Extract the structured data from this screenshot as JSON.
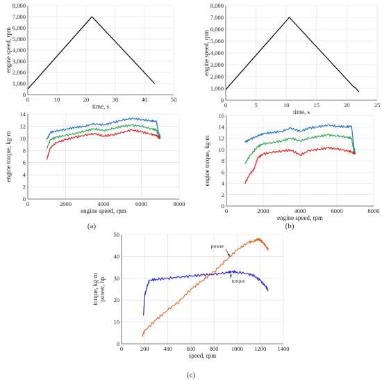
{
  "chart_data": [
    {
      "id": "a_top",
      "type": "line",
      "xlabel": "time, s",
      "ylabel": "engine speed, rpm",
      "xlim": [
        0,
        50
      ],
      "ylim": [
        0,
        8000
      ],
      "xticks": [
        0,
        10,
        20,
        30,
        40,
        50
      ],
      "xtick_labels": [
        "0",
        "10",
        "20",
        "30",
        "40",
        "50"
      ],
      "yticks": [
        0,
        1000,
        2000,
        3000,
        4000,
        5000,
        6000,
        7000,
        8000
      ],
      "ytick_labels": [
        "0",
        "1,000",
        "2,000",
        "3,000",
        "4,000",
        "5,000",
        "6,000",
        "7,000",
        "8,000"
      ],
      "grid": true,
      "series": [
        {
          "color": "#000000",
          "x": [
            0,
            22,
            43.5
          ],
          "y": [
            500,
            7000,
            1000
          ]
        }
      ]
    },
    {
      "id": "b_top",
      "type": "line",
      "xlabel": "time, s",
      "ylabel": "engine speed, rpm",
      "xlim": [
        0,
        25
      ],
      "ylim": [
        0,
        8000
      ],
      "xticks": [
        0,
        5,
        10,
        15,
        20,
        25
      ],
      "xtick_labels": [
        "0",
        "5",
        "10",
        "15",
        "20",
        "25"
      ],
      "yticks": [
        0,
        1000,
        2000,
        3000,
        4000,
        5000,
        6000,
        7000,
        8000
      ],
      "ytick_labels": [
        "0",
        "1,000",
        "2,000",
        "3,000",
        "4,000",
        "5,000",
        "6,000",
        "7,000",
        "8,000"
      ],
      "grid": true,
      "series": [
        {
          "color": "#000000",
          "x": [
            0,
            10.5,
            21,
            21.5,
            22
          ],
          "y": [
            900,
            7000,
            1200,
            1000,
            700
          ]
        }
      ]
    },
    {
      "id": "a_bottom",
      "type": "line",
      "xlabel": "engine speed, rpm",
      "ylabel": "engine torque, kg·m",
      "xlim": [
        0,
        8000
      ],
      "ylim": [
        0,
        14
      ],
      "xticks": [
        0,
        2000,
        4000,
        6000,
        8000
      ],
      "xtick_labels": [
        "0",
        "2000",
        "4000",
        "6000",
        "8000"
      ],
      "yticks": [
        0,
        2,
        4,
        6,
        8,
        10,
        12,
        14
      ],
      "ytick_labels": [
        "0",
        "2",
        "4",
        "6",
        "8",
        "10",
        "12",
        "14"
      ],
      "grid": true,
      "series": [
        {
          "color": "#1f6fc8",
          "x": [
            1000,
            1200,
            1500,
            2000,
            2500,
            3000,
            3500,
            4000,
            4500,
            5000,
            5500,
            6000,
            6500,
            6800,
            6900,
            7000
          ],
          "y": [
            9.8,
            11.0,
            11.2,
            11.5,
            11.8,
            12.0,
            12.4,
            12.2,
            12.6,
            13.0,
            13.3,
            13.1,
            12.9,
            12.8,
            11.0,
            10.2
          ]
        },
        {
          "color": "#2aa84a",
          "x": [
            1000,
            1200,
            1500,
            2000,
            2500,
            3000,
            3500,
            4000,
            4500,
            5000,
            5500,
            6000,
            6500,
            6800,
            6900,
            7000
          ],
          "y": [
            8.3,
            9.8,
            10.2,
            10.5,
            10.8,
            11.2,
            11.6,
            11.3,
            11.6,
            12.0,
            12.2,
            12.0,
            11.6,
            11.4,
            10.5,
            10.0
          ]
        },
        {
          "color": "#e02020",
          "x": [
            1000,
            1200,
            1500,
            2000,
            2500,
            3000,
            3500,
            4000,
            4500,
            5000,
            5500,
            6000,
            6500,
            6800,
            6900,
            7000
          ],
          "y": [
            6.5,
            8.5,
            9.3,
            9.8,
            10.2,
            10.5,
            10.8,
            10.4,
            10.6,
            11.0,
            11.4,
            11.1,
            10.7,
            10.5,
            10.2,
            10.0
          ]
        }
      ]
    },
    {
      "id": "b_bottom",
      "type": "line",
      "xlabel": "engine speed, rpm",
      "ylabel": "engine torque, kg·m",
      "xlim": [
        0,
        8000
      ],
      "ylim": [
        0,
        16
      ],
      "xticks": [
        0,
        2000,
        4000,
        6000,
        8000
      ],
      "xtick_labels": [
        "0",
        "2000",
        "4000",
        "6000",
        "8000"
      ],
      "yticks": [
        0,
        2,
        4,
        6,
        8,
        10,
        12,
        14,
        16
      ],
      "ytick_labels": [
        "0",
        "2",
        "4",
        "6",
        "8",
        "10",
        "12",
        "14",
        "16"
      ],
      "grid": true,
      "series": [
        {
          "color": "#1f6fc8",
          "x": [
            1000,
            1300,
            1700,
            2000,
            2500,
            3000,
            3500,
            4000,
            4500,
            5000,
            5500,
            6000,
            6500,
            6800,
            6900,
            7000
          ],
          "y": [
            11.3,
            11.8,
            12.4,
            12.8,
            13.0,
            13.2,
            13.8,
            13.2,
            13.8,
            14.0,
            14.3,
            14.1,
            14.0,
            14.1,
            11.0,
            9.2
          ]
        },
        {
          "color": "#2aa84a",
          "x": [
            1000,
            1300,
            1700,
            2000,
            2500,
            3000,
            3500,
            4000,
            4500,
            5000,
            5500,
            6000,
            6500,
            6800,
            6900,
            7000
          ],
          "y": [
            7.5,
            9.0,
            10.5,
            11.0,
            11.2,
            11.5,
            12.0,
            11.5,
            12.0,
            12.3,
            12.6,
            12.4,
            12.2,
            12.0,
            10.0,
            9.2
          ]
        },
        {
          "color": "#e02020",
          "x": [
            1000,
            1300,
            1500,
            1700,
            2000,
            2500,
            3000,
            3500,
            4000,
            4500,
            5000,
            5500,
            6000,
            6500,
            6800,
            7000
          ],
          "y": [
            4.0,
            5.8,
            6.5,
            8.5,
            9.2,
            9.5,
            9.7,
            9.9,
            9.0,
            9.8,
            10.0,
            10.3,
            10.1,
            9.8,
            9.6,
            9.2
          ]
        }
      ]
    },
    {
      "id": "c",
      "type": "line",
      "xlabel": "speed, rpm",
      "ylabel": "torque, kg·m\npower, hp",
      "xlim": [
        0,
        1400
      ],
      "ylim": [
        0,
        50
      ],
      "xticks": [
        0,
        200,
        400,
        600,
        800,
        1000,
        1200,
        1400
      ],
      "xtick_labels": [
        "0",
        "200",
        "400",
        "600",
        "800",
        "1000",
        "1200",
        "1400"
      ],
      "yticks": [
        0,
        10,
        20,
        30,
        40,
        50
      ],
      "ytick_labels": [
        "0",
        "10",
        "20",
        "30",
        "40",
        "50"
      ],
      "grid": true,
      "annotations": [
        {
          "text": "power",
          "x": 830,
          "y": 44,
          "arrow_to": [
            935,
            40
          ]
        },
        {
          "text": "torque",
          "x": 1010,
          "y": 28,
          "arrow_to": [
            950,
            32
          ]
        }
      ],
      "series": [
        {
          "color": "#1a1ad8",
          "name": "torque",
          "x": [
            190,
            200,
            220,
            240,
            300,
            400,
            500,
            600,
            700,
            800,
            900,
            950,
            1000,
            1100,
            1150,
            1200,
            1250,
            1270
          ],
          "y": [
            13,
            22,
            26,
            29,
            29.5,
            30,
            30.5,
            31,
            31.5,
            31.8,
            32.5,
            33,
            32.8,
            32,
            31,
            29,
            26,
            24.5
          ]
        },
        {
          "color": "#e0601a",
          "name": "power",
          "x": [
            180,
            200,
            300,
            400,
            500,
            600,
            700,
            800,
            900,
            1000,
            1100,
            1150,
            1180,
            1200,
            1230,
            1250,
            1270
          ],
          "y": [
            3.5,
            6,
            11,
            15.5,
            19.5,
            25,
            29,
            33,
            38,
            43,
            46.5,
            47,
            48,
            47.5,
            46,
            44.5,
            43
          ]
        }
      ]
    }
  ],
  "panel_labels": [
    "(a)",
    "(b)",
    "(c)"
  ]
}
